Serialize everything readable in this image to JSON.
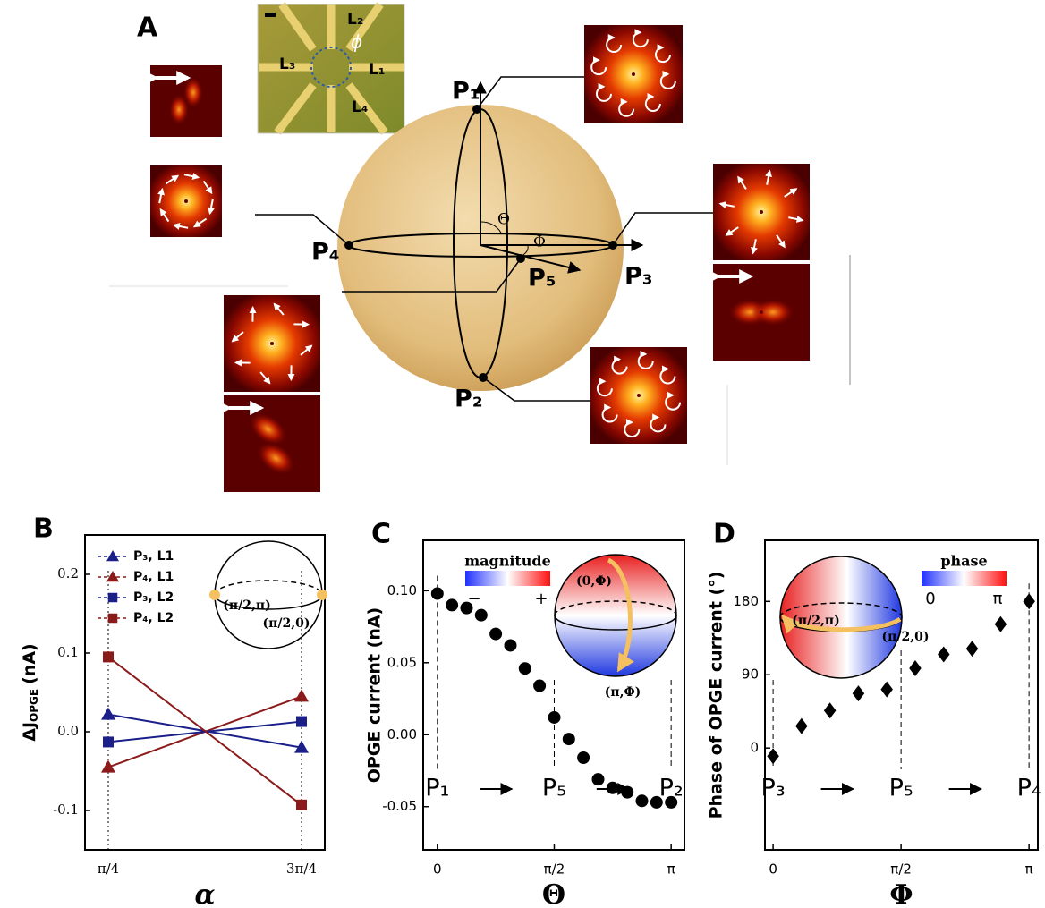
{
  "panel_a": {
    "label": "A",
    "points": [
      "P₁",
      "P₂",
      "P₃",
      "P₄",
      "P₅"
    ],
    "angles": [
      "Θ",
      "Φ"
    ],
    "device": {
      "leads": [
        "L₁",
        "L₂",
        "L₃",
        "L₄"
      ],
      "angle": "ϕ"
    }
  },
  "chart_data": [
    {
      "panel": "B",
      "type": "line",
      "categories": [
        "π/4",
        "3π/4"
      ],
      "ylim": [
        -0.15,
        0.25
      ],
      "yticks": [
        -0.1,
        {
          "value": 0,
          "label": "0.0"
        },
        0.1,
        0.2
      ],
      "xlabel": "α",
      "ylabel": {
        "text": "ΔJ",
        "sub": "OPGE",
        "unit": "(nA)"
      },
      "legend": "upper left",
      "series": [
        {
          "name": "P₃, L1",
          "color": "#1a1f8a",
          "marker": "triangle",
          "values": [
            0.022,
            -0.02
          ]
        },
        {
          "name": "P₄, L1",
          "color": "#8b1a1a",
          "marker": "triangle",
          "values": [
            -0.045,
            0.045
          ]
        },
        {
          "name": "P₃, L2",
          "color": "#1a1f8a",
          "marker": "square",
          "values": [
            -0.013,
            0.013
          ]
        },
        {
          "name": "P₄, L2",
          "color": "#8b1a1a",
          "marker": "square",
          "values": [
            0.095,
            -0.093
          ]
        }
      ],
      "inset_labels": [
        "(π/2,π)",
        "(π/2,0)"
      ]
    },
    {
      "panel": "C",
      "type": "scatter",
      "x": [
        0,
        0.196,
        0.393,
        0.589,
        0.785,
        0.982,
        1.178,
        1.374,
        1.571,
        1.767,
        1.963,
        2.16,
        2.356,
        2.553,
        2.749,
        2.945,
        3.142
      ],
      "series": [
        {
          "color": "#000000",
          "marker": "circle",
          "values": [
            0.098,
            0.09,
            0.088,
            0.083,
            0.07,
            0.062,
            0.046,
            0.034,
            0.012,
            -0.003,
            -0.016,
            -0.031,
            -0.037,
            -0.04,
            -0.046,
            -0.047,
            -0.047
          ]
        }
      ],
      "xlim": [
        -0.19,
        3.32
      ],
      "xticks": [
        0,
        {
          "value": 1.5708,
          "label": "π/2"
        },
        {
          "value": 3.1416,
          "label": "π"
        }
      ],
      "ylim": [
        -0.08,
        0.135
      ],
      "yticks": [
        -0.05,
        {
          "value": 0,
          "label": "0.00"
        },
        0.05,
        {
          "value": 0.1,
          "label": "0.10"
        }
      ],
      "xlabel": "Θ",
      "ylabel": "OPGE current (nA)",
      "path_labels": [
        "P₁",
        "P₅",
        "P₂"
      ],
      "colorbar": {
        "label": "magnitude",
        "ends": [
          "−",
          "+"
        ]
      },
      "inset_labels": [
        "(0,Φ)",
        "(π,Φ)"
      ]
    },
    {
      "panel": "D",
      "type": "scatter",
      "x": [
        0,
        0.349,
        0.698,
        1.047,
        1.396,
        1.745,
        2.094,
        2.443,
        2.793,
        3.142
      ],
      "series": [
        {
          "color": "#000000",
          "marker": "diamond",
          "values": [
            -10,
            27,
            46,
            67,
            72,
            98,
            115,
            122,
            152,
            180
          ]
        }
      ],
      "xlim": [
        -0.1,
        3.25
      ],
      "xticks": [
        0,
        {
          "value": 1.5708,
          "label": "π/2"
        },
        {
          "value": 3.1416,
          "label": "π"
        }
      ],
      "ylim": [
        -125,
        255
      ],
      "yticks": [
        0,
        90,
        180
      ],
      "xlabel": "Φ",
      "ylabel": "Phase of OPGE current (°)",
      "path_labels": [
        "P₃",
        "P₅",
        "P₄"
      ],
      "colorbar": {
        "label": "phase",
        "ends": [
          "0",
          "π"
        ]
      },
      "inset_labels": [
        "(π/2,π)",
        "(π/2,0)"
      ]
    }
  ]
}
